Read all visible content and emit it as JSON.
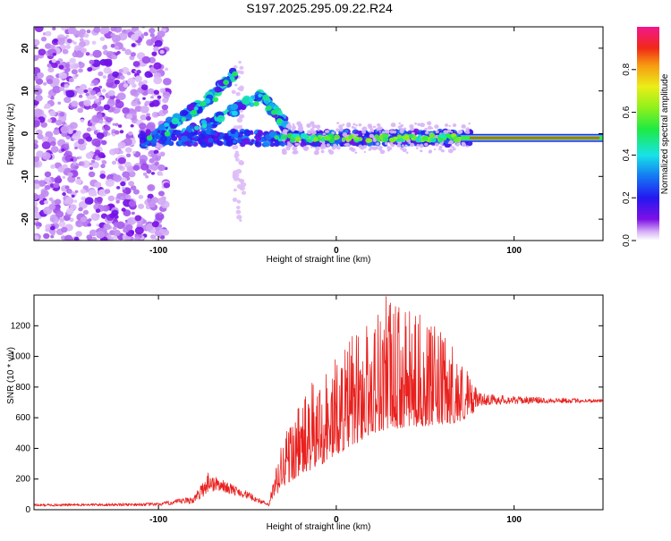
{
  "title": "S197.2025.295.09.22.R24",
  "colors": {
    "snr_line": "#e8211e",
    "spectrum_core": "#e8211e",
    "axis": "#000000"
  },
  "chart_data": [
    {
      "type": "heatmap",
      "name": "spectrogram",
      "xlabel": "Height of straight line (km)",
      "ylabel": "Frequency (Hz)",
      "xlim": [
        -170,
        150
      ],
      "ylim": [
        -25,
        25
      ],
      "xticks": [
        -100,
        0,
        100
      ],
      "yticks": [
        -20,
        -10,
        0,
        10,
        20
      ],
      "colorbar": {
        "label": "Normalized spectral amplitude",
        "range": [
          0,
          1
        ],
        "ticks": [
          0,
          0.2,
          0.4,
          0.6,
          0.8
        ],
        "tick_labels": [
          "0.0",
          "0.2",
          "0.4",
          "0.6",
          "0.8"
        ],
        "colormap": "rainbow (white to violet, blue, cyan, green, yellow, orange, red, magenta)"
      },
      "features": {
        "noise_region_x": [
          -170,
          -95
        ],
        "main_line_frequency_hz": -1,
        "main_line_start_x": -110,
        "strong_tone_start_x": 70,
        "branch_1": [
          [
            -110,
            -2
          ],
          [
            -90,
            3
          ],
          [
            -75,
            7
          ],
          [
            -57,
            14
          ]
        ],
        "branch_2": [
          [
            -85,
            0
          ],
          [
            -60,
            5
          ],
          [
            -42,
            9
          ],
          [
            -30,
            3
          ],
          [
            -28,
            0
          ]
        ]
      }
    },
    {
      "type": "line",
      "name": "snr",
      "xlabel": "Height of straight line (km)",
      "ylabel": "SNR (10 * v/v)",
      "xlim": [
        -170,
        150
      ],
      "ylim": [
        0,
        1400
      ],
      "xticks": [
        -100,
        0,
        100
      ],
      "yticks": [
        0,
        200,
        400,
        600,
        800,
        1000,
        1200
      ],
      "envelope": {
        "x": [
          -170,
          -100,
          -80,
          -72,
          -65,
          -50,
          -38,
          -30,
          -20,
          -10,
          0,
          10,
          20,
          28,
          40,
          55,
          65,
          75,
          80,
          100,
          150
        ],
        "baseline": [
          22,
          25,
          40,
          110,
          120,
          70,
          20,
          150,
          230,
          280,
          360,
          420,
          500,
          520,
          540,
          550,
          560,
          600,
          680,
          690,
          700
        ],
        "peak": [
          38,
          45,
          90,
          240,
          200,
          120,
          40,
          520,
          720,
          900,
          1000,
          1150,
          1300,
          1390,
          1300,
          1200,
          1100,
          900,
          760,
          740,
          720
        ]
      },
      "notable_peaks": [
        {
          "x": 28,
          "y": 1390
        },
        {
          "x": 47,
          "y": 1270
        },
        {
          "x": 9,
          "y": 1130
        },
        {
          "x": -72,
          "y": 240
        }
      ]
    }
  ]
}
